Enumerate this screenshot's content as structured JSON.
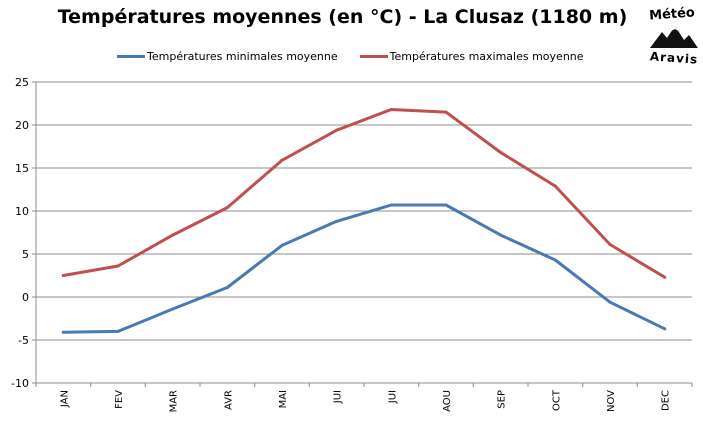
{
  "chart_data": {
    "type": "line",
    "title": "Températures moyennes (en °C) - La Clusaz (1180 m)",
    "categories": [
      "JAN",
      "FEV",
      "MAR",
      "AVR",
      "MAI",
      "JUI",
      "JUI",
      "AOU",
      "SEP",
      "OCT",
      "NOV",
      "DEC"
    ],
    "series": [
      {
        "name": "Températures minimales moyenne",
        "color": "#4a7ab5",
        "values": [
          -4.1,
          -4.0,
          -1.4,
          1.1,
          6.0,
          8.8,
          10.7,
          10.7,
          7.2,
          4.3,
          -0.6,
          -3.7
        ]
      },
      {
        "name": "Températures maximales moyenne",
        "color": "#c0504d",
        "values": [
          2.5,
          3.6,
          7.2,
          10.4,
          15.9,
          19.4,
          21.8,
          21.5,
          16.8,
          12.9,
          6.1,
          2.3
        ]
      }
    ],
    "ylim": [
      -10,
      25
    ],
    "yticks": [
      -10,
      -5,
      0,
      5,
      10,
      15,
      20,
      25
    ],
    "grid": true,
    "legend_position": "top"
  },
  "logo": {
    "line1": "Météo",
    "line2": "Aravis"
  }
}
